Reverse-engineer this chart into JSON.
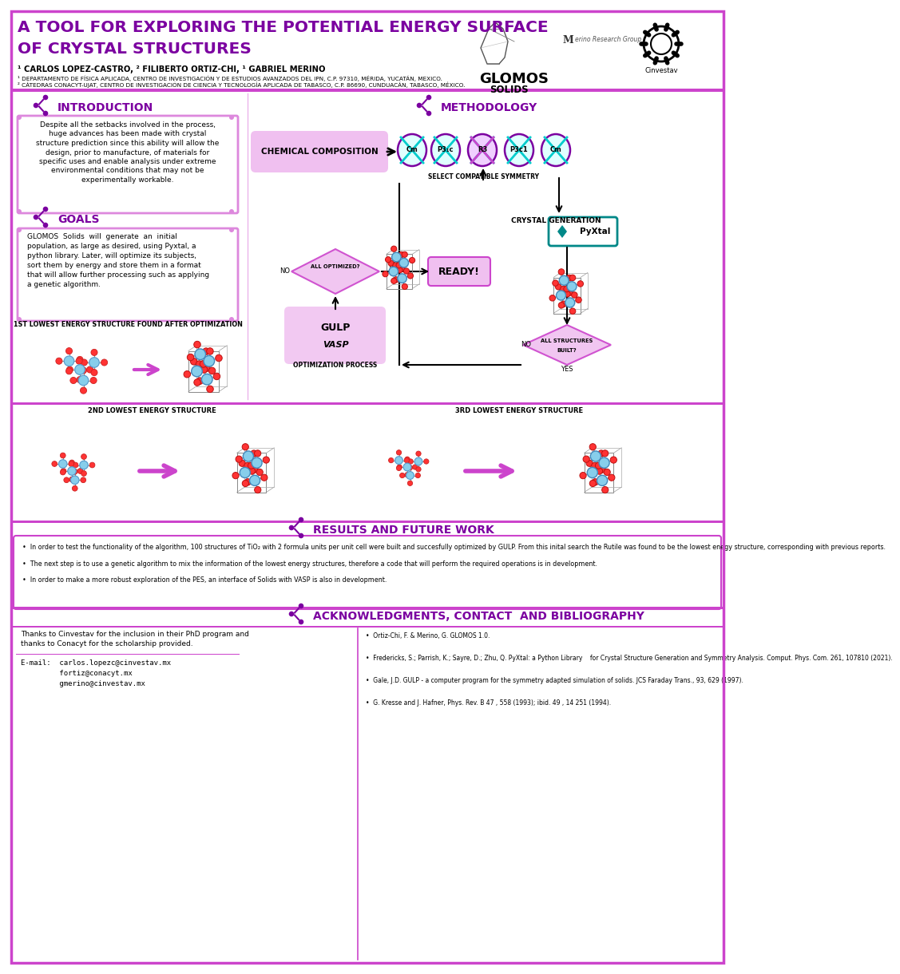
{
  "bg_color": "#ffffff",
  "title_line1": "A TOOL FOR EXPLORING THE POTENTIAL ENERGY SURFACE",
  "title_line2": "OF CRYSTAL STRUCTURES",
  "title_color": "#8B008B",
  "authors": "¹ CARLOS LOPEZ-CASTRO, ² FILIBERTO ORTIZ-CHI, ¹ GABRIEL MERINO",
  "affil1": "¹ DEPARTAMENTO DE FÍSICA APLICADA, CENTRO DE INVESTIGACIÓN Y DE ESTUDIOS AVANZADOS DEL IPN, C.P. 97310, MÉRIDA, YUCATÁN, MEXICO.",
  "affil2": "² CÁTEDRAS CONACYT-UJAT, CENTRO DE INVESTIGACIÓN DE CIENCIA Y TECNOLOGÍA APLICADA DE TABASCO, C.P. 86690, CUNDUACÁN, TABASCO, MÉXICO.",
  "header_bar_color": "#CC44CC",
  "accent_color": "#7B00A0",
  "pink_light": "#F0C0F0",
  "pink_med": "#DD88DD",
  "pink_border": "#CC44CC",
  "section_intro_title": "INTRODUCTION",
  "intro_text_lines": [
    "Despite all the setbacks involved in the process,",
    "huge advances has been made with crystal",
    "structure prediction since this ability will allow the",
    "design, prior to manufacture, of materials for",
    "specific uses and enable analysis under extreme",
    "environmental conditions that may not be",
    "experimentally workable."
  ],
  "section_goals_title": "GOALS",
  "goals_text_lines": [
    "GLOMOS  Solids  will  generate  an  initial",
    "population, as large as desired, using Pyxtal, a",
    "python library. Later, will optimize its subjects,",
    "sort them by energy and store them in a format",
    "that will allow further processing such as applying",
    "a genetic algorithm."
  ],
  "section_methodology_title": "METHODOLOGY",
  "chem_comp_label": "CHEMICAL COMPOSITION",
  "symmetry_labels": [
    "Cm",
    "P3₁c",
    "R3",
    "P3c1",
    "Cm"
  ],
  "select_sym_label": "SELECT COMPATIBLE SYMMETRY",
  "crystal_gen_label": "CRYSTAL GENERATION",
  "opt_process_label": "OPTIMIZATION PROCESS",
  "all_opt_label": "ALL OPTIMIZED?",
  "ready_label": "READY!",
  "all_struct_label": "ALL STRUCTURES\nBUILT?",
  "yes_label": "YES",
  "no_label": "NO",
  "label_1st": "1ST LOWEST ENERGY STRUCTURE FOUND AFTER OPTIMIZATION",
  "label_2nd": "2ND LOWEST ENERGY STRUCTURE",
  "label_3rd": "3RD LOWEST ENERGY STRUCTURE",
  "section_results_title": "RESULTS AND FUTURE WORK",
  "results_bullets": [
    "In order to test the functionality of the algorithm, 100 structures of TiO₂ with 2 formula units per unit cell were built and succesfully optimized by GULP. From this inital search the Rutile was found to be the lowest enegy structure, corresponding with previous reports.",
    "The next step is to use a genetic algorithm to mix the information of the lowest energy structures, therefore a code that will perform the required operations is in development.",
    "In order to make a more robust exploration of the PES, an interface of Solids with VASP is also in development."
  ],
  "section_ack_title": "ACKNOWLEDGMENTS, CONTACT  AND BIBLIOGRAPHY",
  "ack_text_lines": [
    "Thanks to Cinvestav for the inclusion in their PhD program and",
    "thanks to Conacyt for the scholarship provided."
  ],
  "contact_lines": [
    "E-mail:  carlos.lopezc@cinvestav.mx",
    "         fortiz@conacyt.mx",
    "         gmerino@cinvestav.mx"
  ],
  "bib_bullets": [
    "Ortiz-Chi, F. & Merino, G. GLOMOS 1.0.",
    "Fredericks, S.; Parrish, K.; Sayre, D.; Zhu, Q. PyXtal: a Python Library    for Crystal Structure Generation and Symmetry Analysis. Comput. Phys. Com. 261, 107810 (2021).",
    "Gale, J.D. GULP - a computer program for the symmetry adapted simulation of solids. JCS Faraday Trans., 93, 629 (1997).",
    "G. Kresse and J. Hafner, Phys. Rev. B 47 , 558 (1993); ibid. 49 , 14 251 (1994)."
  ]
}
